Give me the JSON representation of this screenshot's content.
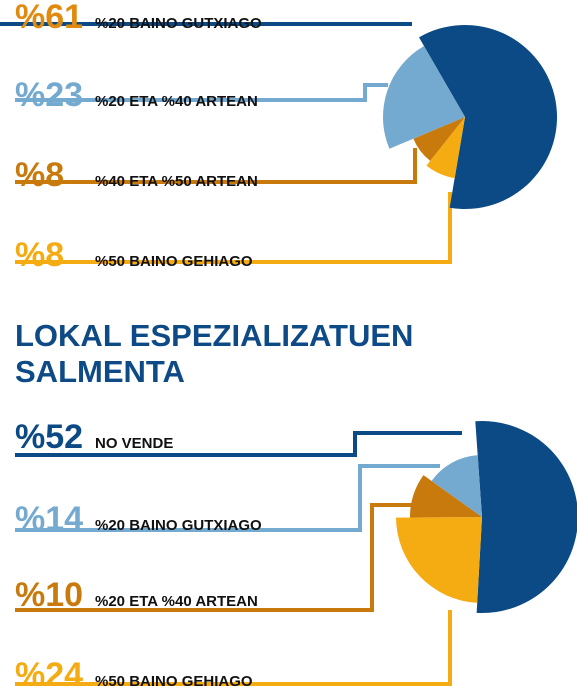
{
  "chart_data": [
    {
      "type": "pie",
      "categories": [
        "%20 BAINO GUTXIAGO",
        "%50 BAINO GEHIAGO",
        "%40 ETA %50 ARTEAN",
        "%20 ETA %40 ARTEAN"
      ],
      "values": [
        61,
        8,
        8,
        23
      ],
      "value_labels": [
        "%61",
        "%8",
        "%8",
        "%23"
      ],
      "colors": [
        "#0b4a85",
        "#f5ab12",
        "#c97a0c",
        "#74a9d0"
      ],
      "label_colors": [
        "#e08a10",
        "#f5ab12",
        "#c97a0c",
        "#74a9d0"
      ]
    },
    {
      "type": "pie",
      "title": "LOKAL ESPEZIALIZATUEN SALMENTA",
      "categories": [
        "NO VENDE",
        "%50 BAINO GEHIAGO",
        "%20 ETA %40 ARTEAN",
        "%20 BAINO GUTXIAGO"
      ],
      "values": [
        52,
        24,
        10,
        14
      ],
      "value_labels": [
        "%52",
        "%24",
        "%10",
        "%14"
      ],
      "colors": [
        "#0b4a85",
        "#f5ab12",
        "#c97a0c",
        "#74a9d0"
      ],
      "label_colors": [
        "#0b4a85",
        "#f5ab12",
        "#c97a0c",
        "#74a9d0"
      ]
    }
  ]
}
